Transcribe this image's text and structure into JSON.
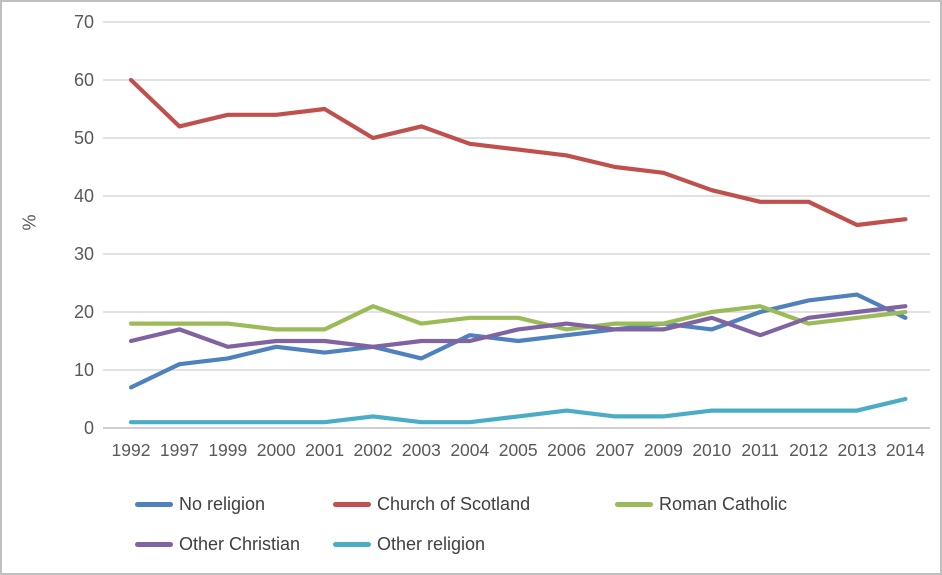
{
  "chart_data": {
    "type": "line",
    "title": "",
    "xlabel": "",
    "ylabel": "%",
    "ylim": [
      0,
      70
    ],
    "y_ticks": [
      0,
      10,
      20,
      30,
      40,
      50,
      60,
      70
    ],
    "grid": true,
    "legend_position": "bottom",
    "categories": [
      "1992",
      "1997",
      "1999",
      "2000",
      "2001",
      "2002",
      "2003",
      "2004",
      "2005",
      "2006",
      "2007",
      "2009",
      "2010",
      "2011",
      "2012",
      "2013",
      "2014"
    ],
    "series": [
      {
        "name": "No religion",
        "color": "#4F81BD",
        "values": [
          7,
          11,
          12,
          14,
          13,
          14,
          12,
          16,
          15,
          16,
          17,
          18,
          17,
          20,
          22,
          23,
          19
        ]
      },
      {
        "name": "Church of Scotland",
        "color": "#C0504D",
        "values": [
          60,
          52,
          54,
          54,
          55,
          50,
          52,
          49,
          48,
          47,
          45,
          44,
          41,
          39,
          39,
          35,
          36
        ]
      },
      {
        "name": "Roman Catholic",
        "color": "#9BBB59",
        "values": [
          18,
          18,
          18,
          17,
          17,
          21,
          18,
          19,
          19,
          17,
          18,
          18,
          20,
          21,
          18,
          19,
          20
        ]
      },
      {
        "name": "Other Christian",
        "color": "#8064A2",
        "values": [
          15,
          17,
          14,
          15,
          15,
          14,
          15,
          15,
          17,
          18,
          17,
          17,
          19,
          16,
          19,
          20,
          21
        ]
      },
      {
        "name": "Other religion",
        "color": "#4BACC6",
        "values": [
          1,
          1,
          1,
          1,
          1,
          2,
          1,
          1,
          2,
          3,
          2,
          2,
          3,
          3,
          3,
          3,
          5
        ]
      }
    ]
  },
  "colors": {
    "tick_text": "#595959",
    "legend_text": "#404040",
    "gridline": "#d9d9d9",
    "axis_line": "#bfbfbf",
    "frame_border": "#bfbfbf",
    "background": "#ffffff"
  }
}
